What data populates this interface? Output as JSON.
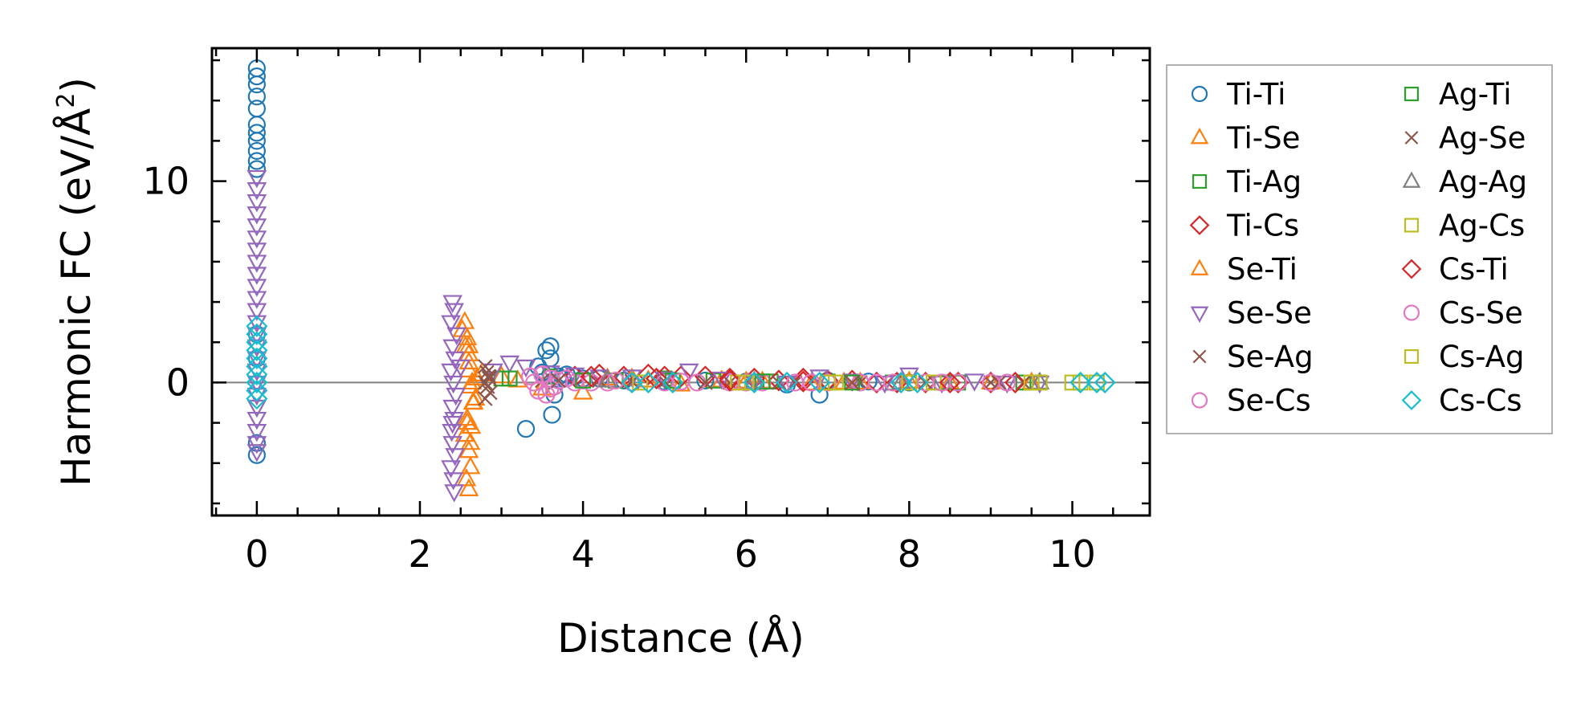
{
  "chart_data": {
    "type": "scatter",
    "title": "",
    "xlabel": "Distance (Å)",
    "ylabel_main": "Harmonic FC (eV/Å",
    "ylabel_sup": "2",
    "ylabel_close": ")",
    "xlim": [
      -0.55,
      10.95
    ],
    "ylim": [
      -6.6,
      16.6
    ],
    "x_ticks": [
      0,
      2,
      4,
      6,
      8,
      10
    ],
    "x_tick_labels": [
      "0",
      "2",
      "4",
      "6",
      "8",
      "10"
    ],
    "y_ticks": [
      0,
      10
    ],
    "y_tick_labels": [
      "0",
      "10"
    ],
    "x_minor_step": 0.5,
    "y_minor_step": 2,
    "zero_line": true,
    "grid": false,
    "legend_position": "outside-right",
    "series": [
      {
        "name": "Ti-Ti",
        "marker": "circle",
        "color": "#1f77b4",
        "x": [
          0,
          0,
          0,
          0,
          0,
          0,
          0,
          0,
          0,
          0,
          0,
          0,
          0,
          0,
          0,
          3.3,
          3.45,
          3.5,
          3.55,
          3.6,
          3.6,
          3.6,
          3.62,
          3.65,
          3.7,
          3.75,
          3.8,
          3.9,
          4.0,
          4.2,
          4.5,
          5.0,
          5.5,
          6.0,
          6.5,
          6.9,
          7.0,
          7.5,
          8.0
        ],
        "y": [
          15.6,
          15.2,
          14.8,
          14.2,
          13.6,
          12.8,
          12.4,
          12.0,
          11.5,
          11.0,
          10.6,
          2.4,
          1.2,
          -3.0,
          -3.6,
          -2.3,
          0.8,
          0.5,
          1.6,
          1.8,
          1.2,
          0.4,
          -1.6,
          -0.6,
          0.3,
          0.2,
          0.4,
          0.3,
          0.2,
          0.2,
          0.1,
          0.05,
          0.1,
          0.05,
          -0.1,
          -0.6,
          0.1,
          0.05,
          0.0
        ]
      },
      {
        "name": "Ti-Se",
        "marker": "triangle-up",
        "color": "#ff7f0e",
        "x": [
          2.55,
          2.58,
          2.6,
          2.6,
          2.62,
          2.65,
          2.58,
          2.55,
          2.6,
          2.62,
          2.57,
          2.6,
          2.63,
          2.66,
          2.7,
          2.75,
          2.6,
          3.0,
          3.5,
          4.0,
          4.3,
          4.8,
          5.2,
          5.7,
          6.2,
          6.8,
          7.4,
          8.0,
          8.5,
          9.0,
          9.5
        ],
        "y": [
          3.0,
          2.2,
          1.4,
          0.6,
          -0.2,
          -1.0,
          -1.8,
          -2.6,
          -3.4,
          -4.2,
          -4.8,
          -5.3,
          -2.2,
          -1.0,
          0.2,
          0.4,
          1.8,
          0.3,
          -0.3,
          -0.5,
          0.2,
          0.1,
          -0.1,
          0.1,
          0.05,
          -0.05,
          0.0,
          0.05,
          0.0,
          0.0,
          0.0
        ]
      },
      {
        "name": "Ti-Ag",
        "marker": "square",
        "color": "#2ca02c",
        "x": [
          3.0,
          3.6,
          4.4,
          5.0,
          5.6,
          6.3,
          7.0,
          7.8,
          8.6,
          9.4
        ],
        "y": [
          0.2,
          0.3,
          0.1,
          0.2,
          0.1,
          0.05,
          0.05,
          0.0,
          0.0,
          0.0
        ]
      },
      {
        "name": "Ti-Cs",
        "marker": "diamond",
        "color": "#d62728",
        "x": [
          3.9,
          4.2,
          4.5,
          4.8,
          5.0,
          5.2,
          5.5,
          5.8,
          6.1,
          6.4,
          6.7,
          7.0,
          7.3,
          7.6,
          7.85,
          8.2,
          8.6,
          9.0
        ],
        "y": [
          0.3,
          0.4,
          0.3,
          0.4,
          0.3,
          0.3,
          0.3,
          0.2,
          0.2,
          0.1,
          0.2,
          0.1,
          0.1,
          0.0,
          0.0,
          0.0,
          0.0,
          0.0
        ]
      },
      {
        "name": "Se-Ti",
        "marker": "triangle-up",
        "color": "#ff7f0e",
        "x": [
          2.52,
          2.56,
          2.6,
          2.64,
          2.68,
          2.58,
          2.62,
          3.2,
          4.6,
          6.0,
          7.2
        ],
        "y": [
          2.6,
          1.8,
          1.0,
          0.0,
          -0.8,
          -2.0,
          -3.0,
          0.1,
          0.2,
          0.05,
          0.0
        ]
      },
      {
        "name": "Se-Se",
        "marker": "triangle-down",
        "color": "#9467bd",
        "x": [
          0,
          0,
          0,
          0,
          0,
          0,
          0,
          0,
          0,
          0,
          0,
          0,
          0,
          0,
          0,
          0,
          0,
          0,
          0,
          0,
          0,
          0,
          0,
          0,
          2.4,
          2.42,
          2.38,
          2.45,
          2.4,
          2.43,
          2.38,
          2.41,
          2.44,
          2.4,
          2.42,
          2.39,
          2.4,
          2.43,
          2.38,
          2.41,
          2.42,
          2.4,
          2.5,
          2.9,
          3.1,
          3.3,
          3.6,
          3.9,
          4.2,
          4.6,
          5.0,
          5.3,
          5.7,
          6.1,
          6.5,
          6.9,
          7.3,
          7.7,
          8.0,
          8.4,
          8.8,
          9.2,
          9.6
        ],
        "y": [
          10.2,
          9.6,
          9.0,
          8.4,
          7.8,
          7.2,
          6.6,
          6.0,
          5.4,
          4.8,
          4.2,
          3.6,
          3.0,
          2.4,
          1.8,
          1.2,
          0.6,
          0.0,
          -0.6,
          -1.2,
          -1.8,
          -2.4,
          -3.0,
          -3.4,
          4.0,
          3.6,
          3.0,
          2.4,
          1.8,
          1.2,
          0.6,
          0.0,
          -0.6,
          -1.2,
          -1.8,
          -2.4,
          -3.0,
          -3.6,
          -4.2,
          -4.8,
          -5.4,
          -2.0,
          0.8,
          0.6,
          1.0,
          0.8,
          0.5,
          0.4,
          0.3,
          0.3,
          0.2,
          0.6,
          0.2,
          0.1,
          0.0,
          0.3,
          0.1,
          0.0,
          0.4,
          0.0,
          0.1,
          0.0,
          0.0
        ]
      },
      {
        "name": "Se-Ag",
        "marker": "x",
        "color": "#8c564b",
        "x": [
          2.8,
          2.82,
          2.85,
          2.8,
          2.83,
          2.86,
          2.8,
          2.84,
          3.5,
          4.2,
          5.0,
          5.8,
          6.6,
          7.4,
          8.2,
          9.0,
          9.4
        ],
        "y": [
          0.8,
          0.5,
          0.2,
          0.0,
          -0.2,
          -0.5,
          -0.8,
          0.3,
          0.1,
          0.1,
          0.05,
          0.0,
          0.0,
          0.0,
          0.0,
          0.0,
          0.0
        ]
      },
      {
        "name": "Se-Cs",
        "marker": "circle",
        "color": "#e377c2",
        "x": [
          3.35,
          3.4,
          3.45,
          3.5,
          3.55,
          3.6,
          3.65,
          3.7,
          3.8,
          3.9,
          4.0,
          4.1,
          4.3,
          4.6,
          5.0,
          5.4,
          5.8,
          6.2,
          6.6,
          7.0,
          7.4,
          7.8,
          8.2,
          8.6,
          9.0
        ],
        "y": [
          0.3,
          0.0,
          -0.4,
          0.4,
          -0.6,
          0.2,
          -0.2,
          0.1,
          0.2,
          0.0,
          0.1,
          0.0,
          0.0,
          0.0,
          0.0,
          0.0,
          0.0,
          0.0,
          0.0,
          0.0,
          0.0,
          0.0,
          0.0,
          0.0,
          0.0
        ]
      },
      {
        "name": "Ag-Ti",
        "marker": "square",
        "color": "#2ca02c",
        "x": [
          3.1,
          4.0,
          5.1,
          6.2,
          7.3,
          8.4
        ],
        "y": [
          0.2,
          0.1,
          0.1,
          0.05,
          0.0,
          0.0
        ]
      },
      {
        "name": "Ag-Se",
        "marker": "x",
        "color": "#8c564b",
        "x": [
          2.85,
          3.7,
          4.6,
          5.5,
          6.4,
          7.3,
          8.2,
          9.1
        ],
        "y": [
          0.3,
          0.1,
          0.05,
          0.0,
          0.0,
          0.0,
          0.0,
          0.0
        ]
      },
      {
        "name": "Ag-Ag",
        "marker": "triangle-up",
        "color": "#7f7f7f",
        "x": [
          4.3,
          6.1,
          7.9,
          9.6
        ],
        "y": [
          0.1,
          0.05,
          0.0,
          0.0
        ]
      },
      {
        "name": "Ag-Cs",
        "marker": "square",
        "color": "#bcbd22",
        "x": [
          4.7,
          5.9,
          7.1,
          8.3,
          9.6,
          10.0
        ],
        "y": [
          0.0,
          0.0,
          0.0,
          0.0,
          0.0,
          0.0
        ]
      },
      {
        "name": "Cs-Ti",
        "marker": "diamond",
        "color": "#d62728",
        "x": [
          4.1,
          4.9,
          5.8,
          6.7,
          7.6,
          8.5,
          9.3
        ],
        "y": [
          0.3,
          0.2,
          0.1,
          0.05,
          0.0,
          0.0,
          0.0
        ]
      },
      {
        "name": "Cs-Se",
        "marker": "circle",
        "color": "#e377c2",
        "x": [
          3.5,
          3.6,
          4.4,
          5.2,
          6.0,
          6.8,
          7.6,
          8.4,
          9.2
        ],
        "y": [
          0.4,
          -0.3,
          0.1,
          0.05,
          0.0,
          0.0,
          0.0,
          0.0,
          0.0
        ]
      },
      {
        "name": "Cs-Ag",
        "marker": "square",
        "color": "#bcbd22",
        "x": [
          6.0,
          7.0,
          8.0,
          9.5,
          10.1,
          10.3
        ],
        "y": [
          0.0,
          0.0,
          0.0,
          0.0,
          0.0,
          0.0
        ]
      },
      {
        "name": "Cs-Cs",
        "marker": "diamond",
        "color": "#17becf",
        "x": [
          0,
          0,
          0,
          0,
          0,
          0,
          0,
          0,
          0,
          0,
          4.6,
          4.8,
          5.1,
          6.1,
          6.5,
          6.9,
          7.9,
          8.1,
          10.1,
          10.3,
          10.4
        ],
        "y": [
          2.8,
          2.4,
          2.0,
          1.6,
          1.2,
          0.8,
          0.4,
          0.0,
          -0.4,
          -0.8,
          0.0,
          0.0,
          0.0,
          0.0,
          0.0,
          0.0,
          0.0,
          0.0,
          0.0,
          0.0,
          0.0
        ]
      }
    ]
  }
}
